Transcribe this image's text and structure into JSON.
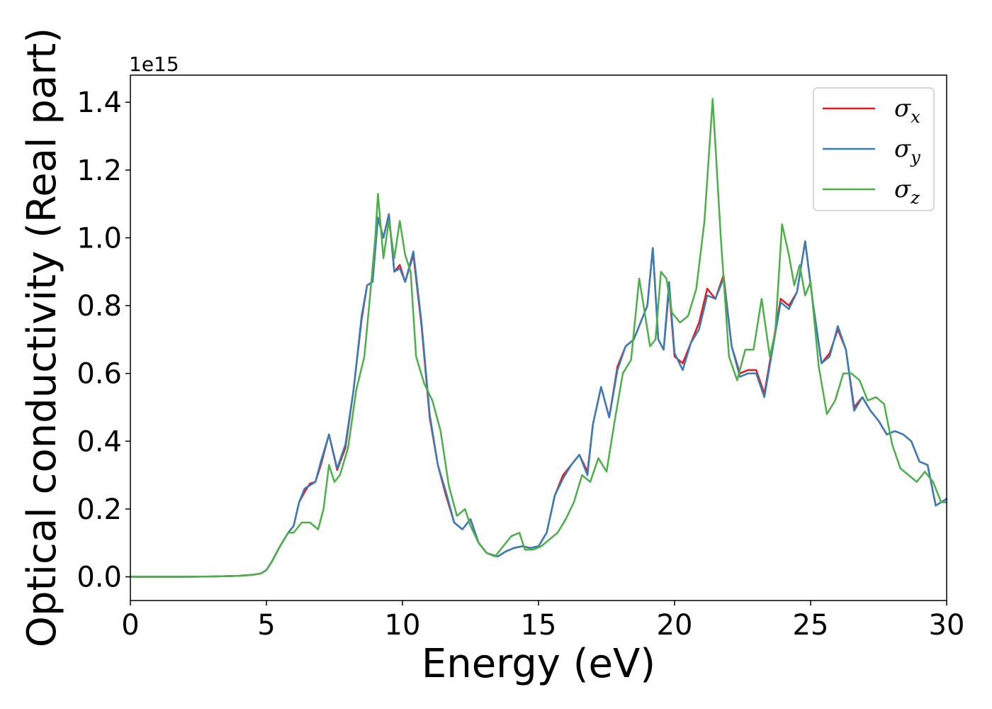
{
  "chart_data": {
    "type": "line",
    "xlabel": "Energy (eV)",
    "ylabel": "Optical conductivity (Real part)",
    "y_offset_label": "1e15",
    "xlim": [
      0,
      30
    ],
    "ylim": [
      -0.07,
      1.48
    ],
    "xticks": [
      0,
      5,
      10,
      15,
      20,
      25,
      30
    ],
    "yticks": [
      0.0,
      0.2,
      0.4,
      0.6,
      0.8,
      1.0,
      1.2,
      1.4
    ],
    "ytick_labels": [
      "0.0",
      "0.2",
      "0.4",
      "0.6",
      "0.8",
      "1.0",
      "1.2",
      "1.4"
    ],
    "grid": false,
    "legend_position": "top-right",
    "series": [
      {
        "name": "σ",
        "subscript": "x",
        "color": "#e41a1c",
        "x": [
          0,
          1,
          2,
          3,
          4,
          4.5,
          4.8,
          5.0,
          5.2,
          5.5,
          5.8,
          6.0,
          6.2,
          6.4,
          6.6,
          6.8,
          7.0,
          7.3,
          7.6,
          7.9,
          8.2,
          8.5,
          8.7,
          8.9,
          9.1,
          9.3,
          9.5,
          9.7,
          9.9,
          10.1,
          10.4,
          10.7,
          11.0,
          11.3,
          11.6,
          11.9,
          12.2,
          12.5,
          12.8,
          13.1,
          13.5,
          13.8,
          14.1,
          14.4,
          14.7,
          15.0,
          15.3,
          15.6,
          15.9,
          16.2,
          16.5,
          16.8,
          17.0,
          17.3,
          17.6,
          17.9,
          18.2,
          18.5,
          18.8,
          19.0,
          19.2,
          19.4,
          19.6,
          19.8,
          20.0,
          20.3,
          20.6,
          20.9,
          21.2,
          21.5,
          21.8,
          22.1,
          22.4,
          22.7,
          23.0,
          23.3,
          23.6,
          23.9,
          24.2,
          24.5,
          24.8,
          25.1,
          25.4,
          25.7,
          26.0,
          26.3,
          26.6,
          26.9,
          27.2,
          27.5,
          27.8,
          28.1,
          28.4,
          28.7,
          29.0,
          29.3,
          29.6,
          30
        ],
        "y": [
          0,
          0,
          0,
          0.001,
          0.003,
          0.006,
          0.01,
          0.02,
          0.045,
          0.09,
          0.13,
          0.15,
          0.22,
          0.25,
          0.275,
          0.28,
          0.33,
          0.42,
          0.315,
          0.38,
          0.55,
          0.76,
          0.86,
          0.87,
          1.06,
          1.0,
          1.07,
          0.9,
          0.92,
          0.87,
          0.95,
          0.74,
          0.47,
          0.33,
          0.24,
          0.16,
          0.14,
          0.17,
          0.1,
          0.07,
          0.06,
          0.075,
          0.085,
          0.09,
          0.085,
          0.09,
          0.13,
          0.24,
          0.3,
          0.33,
          0.36,
          0.31,
          0.45,
          0.56,
          0.47,
          0.62,
          0.68,
          0.7,
          0.76,
          0.8,
          0.97,
          0.7,
          0.67,
          0.85,
          0.65,
          0.63,
          0.69,
          0.75,
          0.85,
          0.82,
          0.89,
          0.68,
          0.6,
          0.61,
          0.61,
          0.54,
          0.68,
          0.82,
          0.8,
          0.84,
          0.99,
          0.8,
          0.63,
          0.66,
          0.73,
          0.67,
          0.5,
          0.53,
          0.49,
          0.46,
          0.42,
          0.43,
          0.42,
          0.4,
          0.34,
          0.33,
          0.21,
          0.23
        ]
      },
      {
        "name": "σ",
        "subscript": "y",
        "color": "#377eb8",
        "x": [
          0,
          1,
          2,
          3,
          4,
          4.5,
          4.8,
          5.0,
          5.2,
          5.5,
          5.8,
          6.0,
          6.2,
          6.4,
          6.6,
          6.8,
          7.0,
          7.3,
          7.6,
          7.9,
          8.2,
          8.5,
          8.7,
          8.9,
          9.1,
          9.3,
          9.5,
          9.7,
          9.9,
          10.1,
          10.4,
          10.7,
          11.0,
          11.3,
          11.6,
          11.9,
          12.2,
          12.5,
          12.8,
          13.1,
          13.5,
          13.8,
          14.1,
          14.4,
          14.7,
          15.0,
          15.3,
          15.6,
          15.9,
          16.2,
          16.5,
          16.8,
          17.0,
          17.3,
          17.6,
          17.9,
          18.2,
          18.5,
          18.8,
          19.0,
          19.2,
          19.4,
          19.6,
          19.8,
          20.0,
          20.3,
          20.6,
          20.9,
          21.2,
          21.5,
          21.8,
          22.1,
          22.4,
          22.7,
          23.0,
          23.3,
          23.6,
          23.9,
          24.2,
          24.5,
          24.8,
          25.1,
          25.4,
          25.7,
          26.0,
          26.3,
          26.6,
          26.9,
          27.2,
          27.5,
          27.8,
          28.1,
          28.4,
          28.7,
          29.0,
          29.3,
          29.6,
          30
        ],
        "y": [
          0,
          0,
          0,
          0.001,
          0.003,
          0.006,
          0.01,
          0.02,
          0.045,
          0.09,
          0.13,
          0.15,
          0.22,
          0.26,
          0.27,
          0.28,
          0.34,
          0.42,
          0.32,
          0.39,
          0.55,
          0.77,
          0.86,
          0.87,
          1.06,
          1.0,
          1.07,
          0.9,
          0.91,
          0.87,
          0.96,
          0.75,
          0.48,
          0.33,
          0.25,
          0.16,
          0.14,
          0.17,
          0.1,
          0.07,
          0.06,
          0.075,
          0.085,
          0.09,
          0.085,
          0.09,
          0.13,
          0.24,
          0.29,
          0.33,
          0.36,
          0.3,
          0.45,
          0.56,
          0.47,
          0.61,
          0.68,
          0.7,
          0.76,
          0.8,
          0.97,
          0.7,
          0.67,
          0.87,
          0.66,
          0.61,
          0.69,
          0.73,
          0.83,
          0.82,
          0.88,
          0.68,
          0.59,
          0.6,
          0.6,
          0.53,
          0.67,
          0.81,
          0.79,
          0.84,
          0.99,
          0.8,
          0.63,
          0.65,
          0.74,
          0.67,
          0.49,
          0.53,
          0.49,
          0.46,
          0.42,
          0.43,
          0.42,
          0.4,
          0.34,
          0.33,
          0.21,
          0.23
        ]
      },
      {
        "name": "σ",
        "subscript": "z",
        "color": "#4daf4a",
        "x": [
          0,
          1,
          2,
          3,
          4,
          4.5,
          4.8,
          5.0,
          5.2,
          5.5,
          5.8,
          6.0,
          6.3,
          6.6,
          6.9,
          7.1,
          7.3,
          7.5,
          7.7,
          8.0,
          8.3,
          8.6,
          8.8,
          9.0,
          9.1,
          9.3,
          9.5,
          9.7,
          9.9,
          10.1,
          10.3,
          10.5,
          10.8,
          11.1,
          11.4,
          11.7,
          12.0,
          12.3,
          12.5,
          12.8,
          13.1,
          13.4,
          13.7,
          14.0,
          14.3,
          14.5,
          14.8,
          15.1,
          15.4,
          15.7,
          16.0,
          16.3,
          16.6,
          16.9,
          17.2,
          17.5,
          17.8,
          18.1,
          18.4,
          18.7,
          18.9,
          19.1,
          19.3,
          19.5,
          19.7,
          19.9,
          20.2,
          20.5,
          20.8,
          21.1,
          21.4,
          21.7,
          22.0,
          22.3,
          22.6,
          22.9,
          23.2,
          23.5,
          23.7,
          23.95,
          24.2,
          24.4,
          24.6,
          24.8,
          25.0,
          25.3,
          25.6,
          25.9,
          26.2,
          26.5,
          26.8,
          27.1,
          27.4,
          27.7,
          28.0,
          28.3,
          28.6,
          28.9,
          29.2,
          29.5,
          29.8,
          30
        ],
        "y": [
          0,
          0,
          0,
          0.001,
          0.003,
          0.006,
          0.01,
          0.02,
          0.045,
          0.09,
          0.13,
          0.13,
          0.16,
          0.16,
          0.14,
          0.2,
          0.33,
          0.28,
          0.3,
          0.38,
          0.55,
          0.65,
          0.82,
          1.0,
          1.13,
          0.94,
          1.05,
          0.94,
          1.05,
          0.95,
          0.9,
          0.65,
          0.57,
          0.52,
          0.43,
          0.27,
          0.18,
          0.2,
          0.15,
          0.1,
          0.07,
          0.06,
          0.09,
          0.12,
          0.13,
          0.08,
          0.08,
          0.09,
          0.11,
          0.13,
          0.17,
          0.22,
          0.3,
          0.28,
          0.35,
          0.31,
          0.46,
          0.6,
          0.64,
          0.88,
          0.78,
          0.68,
          0.7,
          0.9,
          0.88,
          0.78,
          0.75,
          0.77,
          0.85,
          1.05,
          1.41,
          1.0,
          0.65,
          0.58,
          0.67,
          0.67,
          0.82,
          0.65,
          0.72,
          1.04,
          0.95,
          0.86,
          0.92,
          0.83,
          0.87,
          0.62,
          0.48,
          0.52,
          0.6,
          0.6,
          0.58,
          0.52,
          0.53,
          0.51,
          0.39,
          0.32,
          0.3,
          0.28,
          0.31,
          0.28,
          0.22,
          0.22
        ]
      }
    ]
  }
}
